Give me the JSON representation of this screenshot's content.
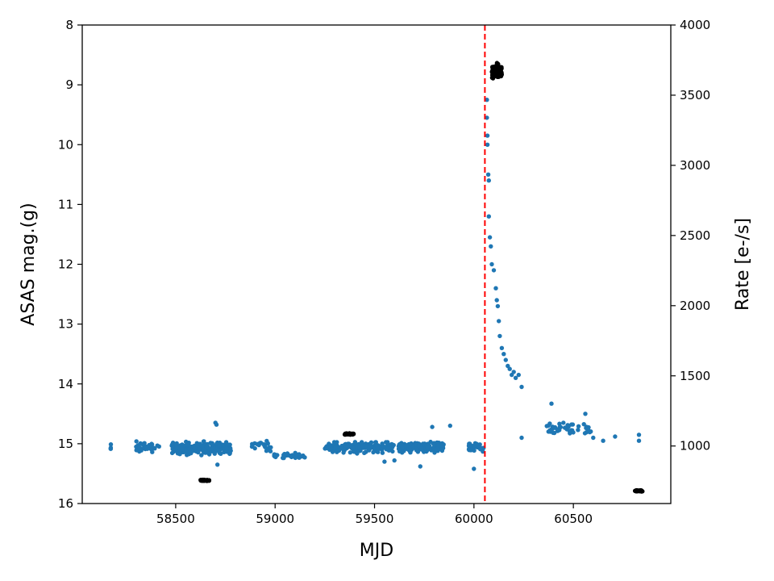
{
  "chart_data": {
    "type": "scatter",
    "title": "",
    "xlabel": "MJD",
    "ylabel": "ASAS mag.(g)",
    "ylabel_right": "Rate [e-/s]",
    "xlim": [
      58030,
      60990
    ],
    "ylim": [
      16,
      8
    ],
    "y_inverted": true,
    "ylim_right": [
      590,
      4000
    ],
    "x_ticks": [
      58500,
      59000,
      59500,
      60000,
      60500
    ],
    "y_ticks": [
      8,
      9,
      10,
      11,
      12,
      13,
      14,
      15,
      16
    ],
    "y_ticks_right": [
      1000,
      1500,
      2000,
      2500,
      3000,
      3500,
      4000
    ],
    "grid": false,
    "legend": "none",
    "vline": {
      "x": 60055,
      "color": "#ff0000",
      "style": "dashed"
    },
    "series": [
      {
        "axis": "left",
        "color": "#1f77b4",
        "marker": "circle",
        "clusters": [
          {
            "x_range": [
              58170,
              58175
            ],
            "y_center": 15.05,
            "y_spread": 0.12,
            "n": 4
          },
          {
            "x_range": [
              58290,
              58420
            ],
            "y_center": 15.05,
            "y_spread": 0.12,
            "n": 40
          },
          {
            "x_range": [
              58480,
              58780
            ],
            "y_center": 15.08,
            "y_spread": 0.14,
            "n": 260
          },
          {
            "x_range": [
              58880,
              58980
            ],
            "y_center": 15.05,
            "y_spread": 0.12,
            "n": 25
          },
          {
            "x_range": [
              58980,
              59150
            ],
            "y_center": 15.2,
            "y_spread": 0.06,
            "n": 40
          },
          {
            "x_range": [
              59250,
              59600
            ],
            "y_center": 15.06,
            "y_spread": 0.12,
            "n": 180
          },
          {
            "x_range": [
              59620,
              59850
            ],
            "y_center": 15.05,
            "y_spread": 0.13,
            "n": 170
          },
          {
            "x_range": [
              59960,
              60050
            ],
            "y_center": 15.05,
            "y_spread": 0.12,
            "n": 30
          },
          {
            "x_range": [
              60360,
              60600
            ],
            "y_center": 14.75,
            "y_spread": 0.14,
            "n": 45
          }
        ],
        "points": [
          {
            "x": 58700,
            "y": 14.65
          },
          {
            "x": 58705,
            "y": 14.68
          },
          {
            "x": 58710,
            "y": 15.35
          },
          {
            "x": 59550,
            "y": 15.3
          },
          {
            "x": 59600,
            "y": 15.28
          },
          {
            "x": 59730,
            "y": 15.38
          },
          {
            "x": 59790,
            "y": 14.72
          },
          {
            "x": 59880,
            "y": 14.7
          },
          {
            "x": 60000,
            "y": 15.42
          },
          {
            "x": 60065,
            "y": 9.25
          },
          {
            "x": 60065,
            "y": 9.55
          },
          {
            "x": 60068,
            "y": 9.85
          },
          {
            "x": 60068,
            "y": 10.0
          },
          {
            "x": 60072,
            "y": 10.5
          },
          {
            "x": 60075,
            "y": 10.6
          },
          {
            "x": 60075,
            "y": 11.2
          },
          {
            "x": 60080,
            "y": 11.55
          },
          {
            "x": 60085,
            "y": 11.7
          },
          {
            "x": 60090,
            "y": 12.0
          },
          {
            "x": 60100,
            "y": 12.1
          },
          {
            "x": 60110,
            "y": 12.4
          },
          {
            "x": 60115,
            "y": 12.6
          },
          {
            "x": 60120,
            "y": 12.7
          },
          {
            "x": 60125,
            "y": 12.95
          },
          {
            "x": 60130,
            "y": 13.2
          },
          {
            "x": 60140,
            "y": 13.4
          },
          {
            "x": 60150,
            "y": 13.5
          },
          {
            "x": 60160,
            "y": 13.6
          },
          {
            "x": 60170,
            "y": 13.7
          },
          {
            "x": 60180,
            "y": 13.75
          },
          {
            "x": 60190,
            "y": 13.85
          },
          {
            "x": 60200,
            "y": 13.8
          },
          {
            "x": 60210,
            "y": 13.9
          },
          {
            "x": 60225,
            "y": 13.85
          },
          {
            "x": 60240,
            "y": 14.05
          },
          {
            "x": 60240,
            "y": 14.9
          },
          {
            "x": 60390,
            "y": 14.33
          },
          {
            "x": 60560,
            "y": 14.5
          },
          {
            "x": 60650,
            "y": 14.95
          },
          {
            "x": 60710,
            "y": 14.88
          },
          {
            "x": 60830,
            "y": 14.85
          },
          {
            "x": 60830,
            "y": 14.95
          },
          {
            "x": 60600,
            "y": 14.9
          },
          {
            "x": 60450,
            "y": 14.65
          }
        ]
      },
      {
        "axis": "right",
        "color": "#000000",
        "marker": "circle",
        "clusters": [
          {
            "x_range": [
              58625,
              58670
            ],
            "y_center": 755,
            "y_spread": 6,
            "n": 40
          },
          {
            "x_range": [
              59350,
              59395
            ],
            "y_center": 1085,
            "y_spread": 6,
            "n": 40
          },
          {
            "x_range": [
              60090,
              60140
            ],
            "y_center": 3670,
            "y_spread": 70,
            "n": 120
          },
          {
            "x_range": [
              60810,
              60850
            ],
            "y_center": 680,
            "y_spread": 6,
            "n": 40
          }
        ],
        "points": []
      }
    ]
  }
}
